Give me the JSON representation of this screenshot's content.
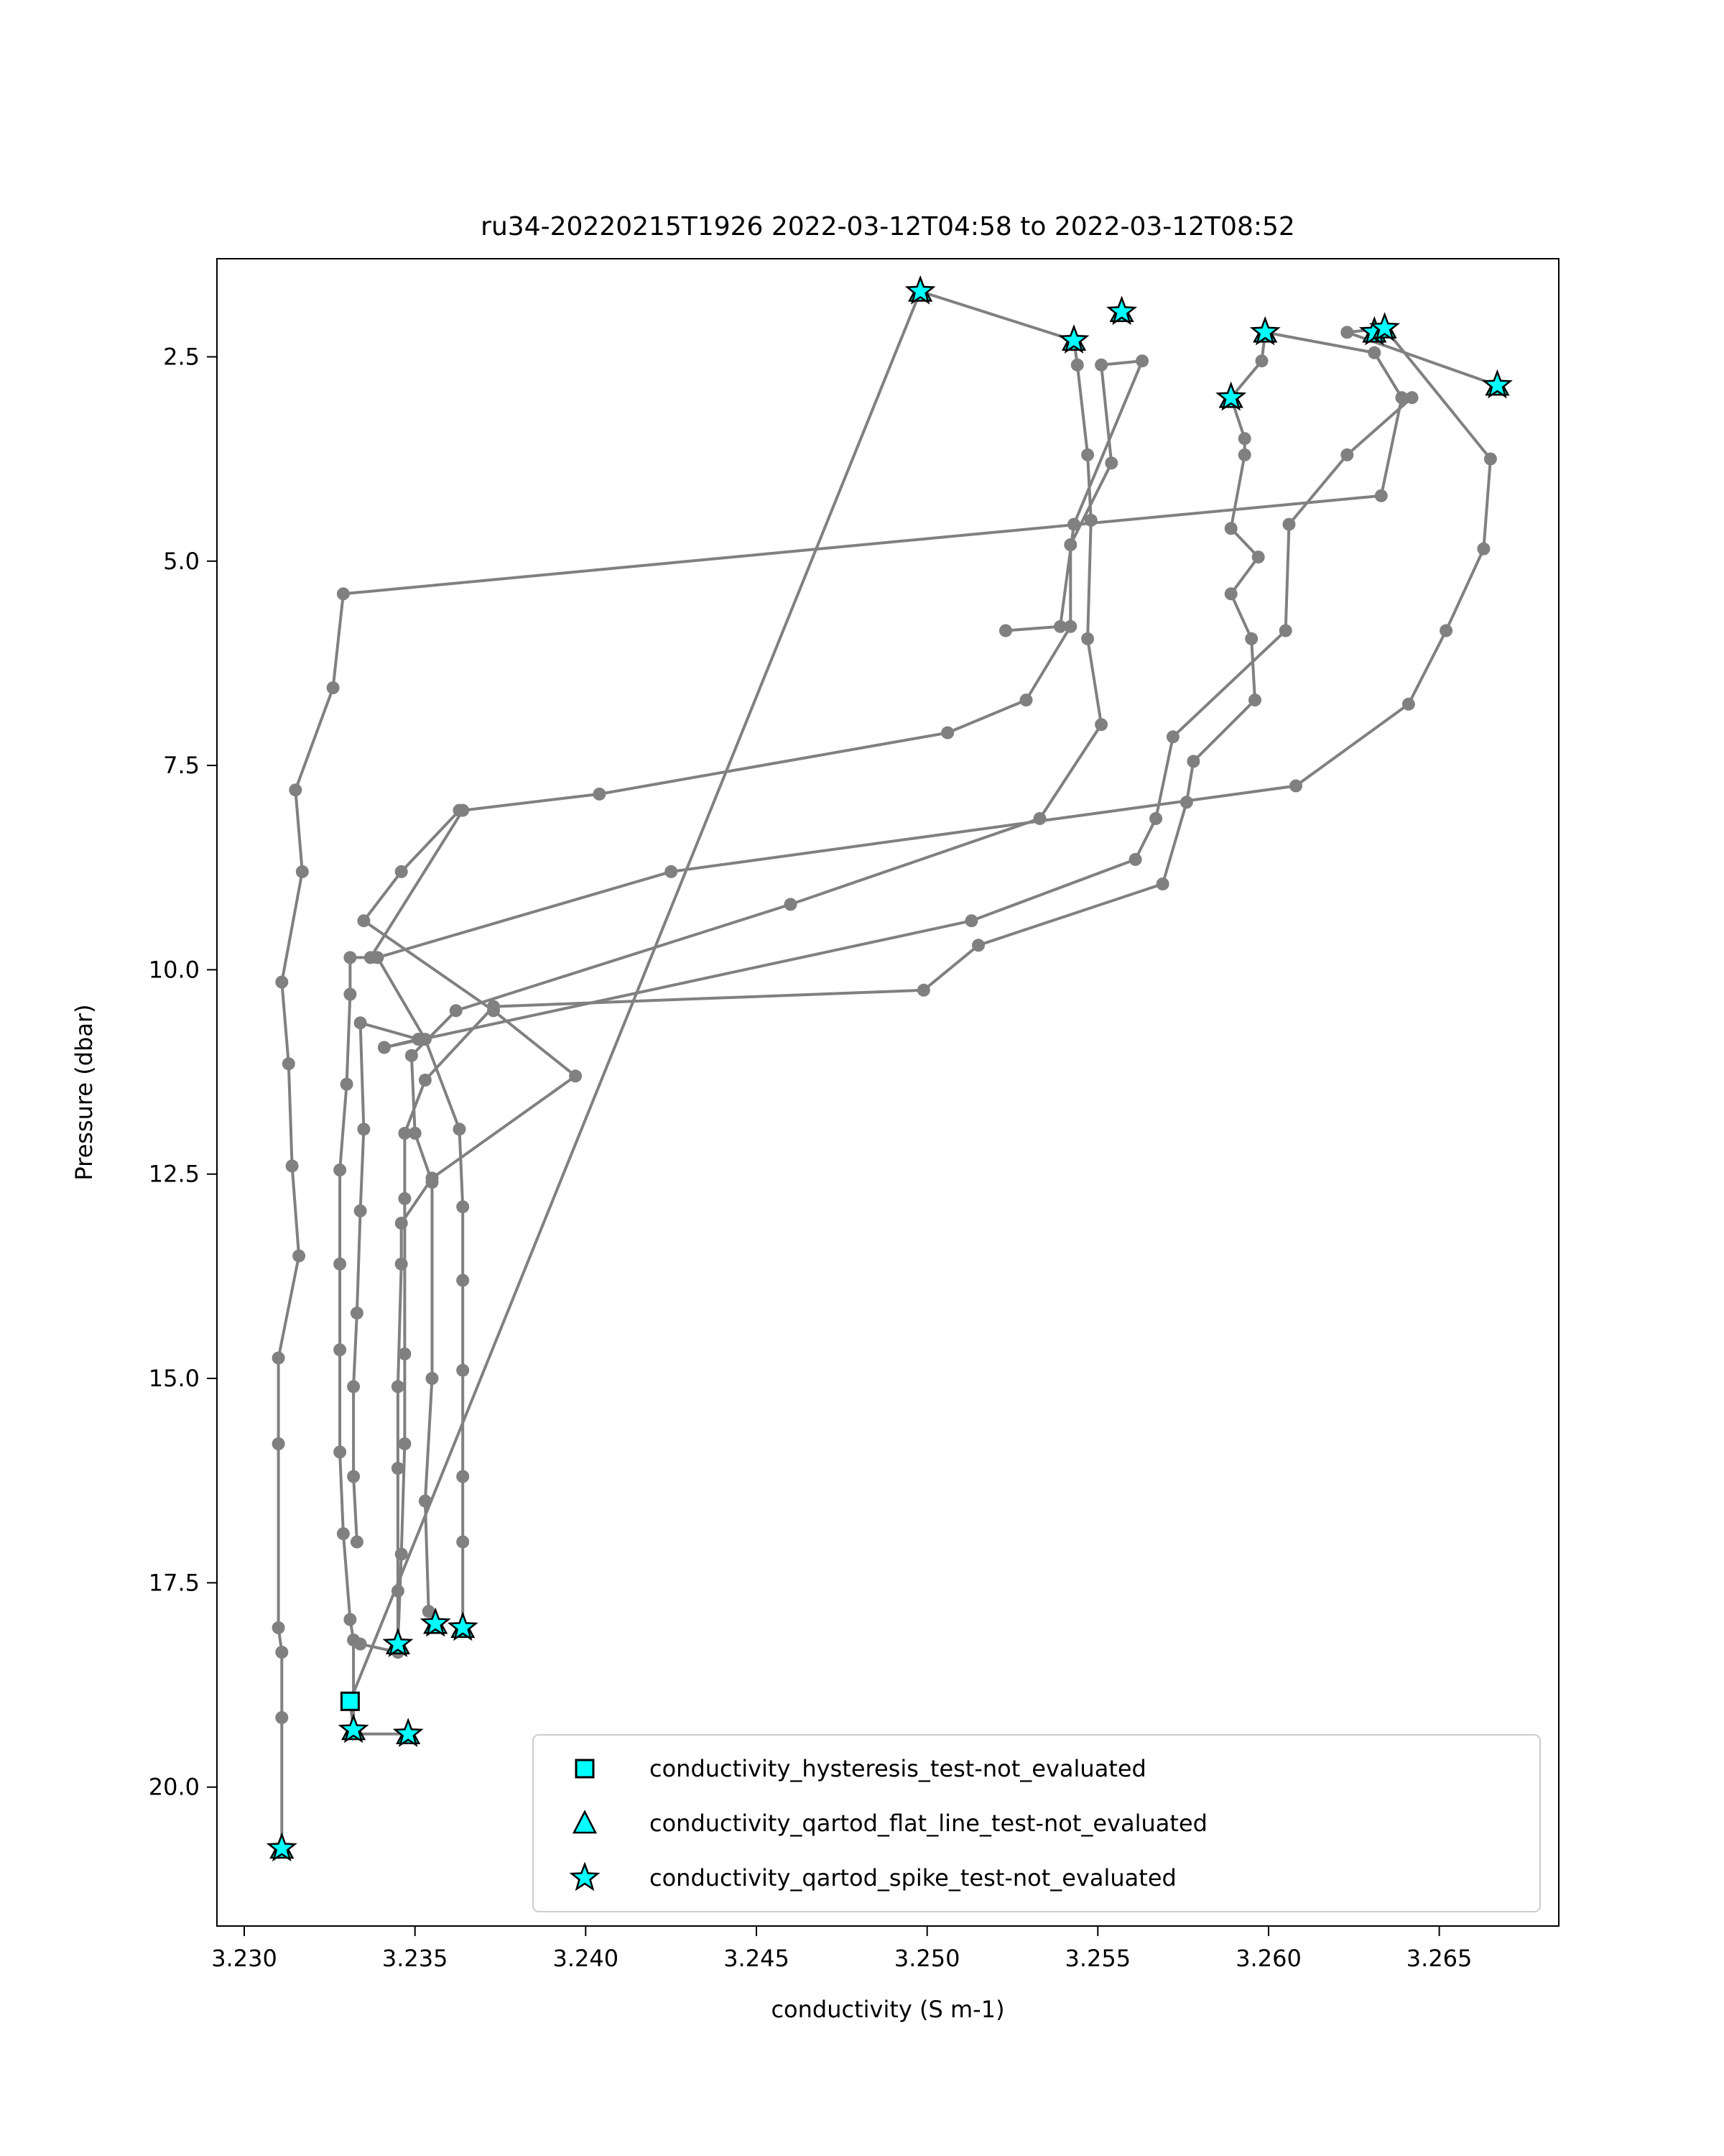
{
  "chart_data": {
    "type": "line",
    "title": "ru34-20220215T1926 2022-03-12T04:58 to 2022-03-12T08:52",
    "xlabel": "conductivity (S m-1)",
    "ylabel": "Pressure (dbar)",
    "xlim": [
      3.2292,
      3.2685
    ],
    "ylim": [
      21.7,
      1.3
    ],
    "y_inverted": true,
    "grid": false,
    "x_ticks": [
      3.23,
      3.235,
      3.24,
      3.245,
      3.25,
      3.255,
      3.26,
      3.265
    ],
    "x_tick_labels": [
      "3.230",
      "3.235",
      "3.240",
      "3.245",
      "3.250",
      "3.255",
      "3.260",
      "3.265"
    ],
    "y_ticks": [
      2.5,
      5.0,
      7.5,
      10.0,
      12.5,
      15.0,
      17.5,
      20.0
    ],
    "y_tick_labels": [
      "2.5",
      "5.0",
      "7.5",
      "10.0",
      "12.5",
      "15.0",
      "17.5",
      "20.0"
    ],
    "line_color": "#808080",
    "marker_fill": "#00ffff",
    "legend_position": "lower right",
    "legend": [
      {
        "label": "conductivity_hysteresis_test-not_evaluated",
        "marker": "square"
      },
      {
        "label": "conductivity_qartod_flat_line_test-not_evaluated",
        "marker": "triangle"
      },
      {
        "label": "conductivity_qartod_spike_test-not_evaluated",
        "marker": "star"
      }
    ],
    "series": [
      {
        "points": [
          [
            3.2311,
            20.75
          ],
          [
            3.2311,
            19.15
          ],
          [
            3.2311,
            18.35
          ],
          [
            3.231,
            18.05
          ],
          [
            3.231,
            15.8
          ],
          [
            3.231,
            14.75
          ],
          [
            3.2316,
            13.5
          ],
          [
            3.2314,
            12.4
          ],
          [
            3.2313,
            11.15
          ],
          [
            3.2311,
            10.15
          ],
          [
            3.2317,
            8.8
          ],
          [
            3.2315,
            7.8
          ],
          [
            3.2326,
            6.55
          ],
          [
            3.2329,
            5.4
          ],
          [
            3.2633,
            4.2
          ],
          [
            3.2639,
            3.0
          ],
          [
            3.2631,
            2.45
          ],
          [
            3.2599,
            2.2
          ],
          [
            3.2598,
            2.55
          ],
          [
            3.2589,
            3.0
          ]
        ]
      },
      {
        "points": [
          [
            3.2589,
            3.0
          ],
          [
            3.2593,
            3.5
          ],
          [
            3.2593,
            3.7
          ],
          [
            3.2589,
            4.6
          ],
          [
            3.2597,
            4.95
          ],
          [
            3.2589,
            5.4
          ],
          [
            3.2595,
            5.95
          ],
          [
            3.2596,
            6.7
          ],
          [
            3.2578,
            7.45
          ],
          [
            3.2576,
            7.95
          ],
          [
            3.2569,
            8.95
          ],
          [
            3.2515,
            9.7
          ],
          [
            3.2499,
            10.25
          ],
          [
            3.2373,
            10.45
          ],
          [
            3.2353,
            11.35
          ],
          [
            3.2347,
            12.0
          ],
          [
            3.2347,
            12.8
          ],
          [
            3.2347,
            14.7
          ],
          [
            3.2347,
            15.8
          ],
          [
            3.2346,
            17.15
          ],
          [
            3.2345,
            18.25
          ]
        ]
      },
      {
        "points": [
          [
            3.2332,
            19.3
          ],
          [
            3.2331,
            18.95
          ],
          [
            3.2498,
            1.7
          ],
          [
            3.2543,
            2.3
          ],
          [
            3.2544,
            2.6
          ],
          [
            3.2547,
            3.7
          ],
          [
            3.2548,
            4.5
          ],
          [
            3.2547,
            5.95
          ],
          [
            3.2551,
            7.0
          ],
          [
            3.2533,
            8.15
          ],
          [
            3.246,
            9.2
          ],
          [
            3.2362,
            10.5
          ],
          [
            3.2349,
            11.05
          ],
          [
            3.235,
            12.0
          ],
          [
            3.2355,
            12.6
          ],
          [
            3.2355,
            15.0
          ],
          [
            3.2353,
            16.5
          ],
          [
            3.2354,
            17.85
          ],
          [
            3.2356,
            18.0
          ]
        ]
      },
      {
        "points": [
          [
            3.2348,
            19.35
          ],
          [
            3.2332,
            19.35
          ],
          [
            3.2332,
            18.2
          ],
          [
            3.2331,
            17.95
          ],
          [
            3.2329,
            16.9
          ],
          [
            3.2328,
            15.9
          ],
          [
            3.2328,
            14.65
          ],
          [
            3.2328,
            13.6
          ],
          [
            3.2328,
            12.45
          ],
          [
            3.233,
            11.4
          ],
          [
            3.2331,
            10.3
          ],
          [
            3.2331,
            9.85
          ],
          [
            3.2337,
            9.85
          ],
          [
            3.2364,
            8.05
          ],
          [
            3.2404,
            7.85
          ],
          [
            3.2506,
            7.1
          ],
          [
            3.2529,
            6.7
          ],
          [
            3.2542,
            5.8
          ],
          [
            3.2542,
            4.8
          ],
          [
            3.2554,
            3.8
          ],
          [
            3.2551,
            2.6
          ],
          [
            3.2563,
            2.55
          ],
          [
            3.2543,
            4.55
          ],
          [
            3.2539,
            5.8
          ],
          [
            3.2523,
            5.85
          ]
        ]
      },
      {
        "points": [
          [
            3.2642,
            3.0
          ],
          [
            3.2623,
            3.7
          ],
          [
            3.2606,
            4.55
          ],
          [
            3.2605,
            5.85
          ],
          [
            3.2572,
            7.15
          ],
          [
            3.2567,
            8.15
          ],
          [
            3.2561,
            8.65
          ],
          [
            3.2513,
            9.4
          ],
          [
            3.2341,
            10.95
          ],
          [
            3.2351,
            10.85
          ],
          [
            3.2334,
            10.65
          ],
          [
            3.2335,
            11.95
          ],
          [
            3.2334,
            12.95
          ],
          [
            3.2333,
            14.2
          ],
          [
            3.2332,
            15.1
          ],
          [
            3.2332,
            16.2
          ],
          [
            3.2333,
            17.0
          ]
        ]
      },
      {
        "points": [
          [
            3.2667,
            2.85
          ],
          [
            3.2623,
            2.2
          ],
          [
            3.2634,
            2.15
          ],
          [
            3.2665,
            3.75
          ],
          [
            3.2663,
            4.85
          ],
          [
            3.2652,
            5.85
          ],
          [
            3.2641,
            6.75
          ],
          [
            3.2608,
            7.75
          ],
          [
            3.2425,
            8.8
          ],
          [
            3.2339,
            9.85
          ],
          [
            3.2353,
            10.85
          ],
          [
            3.2363,
            11.95
          ],
          [
            3.2364,
            12.9
          ],
          [
            3.2364,
            13.8
          ],
          [
            3.2364,
            14.9
          ],
          [
            3.2364,
            16.2
          ],
          [
            3.2364,
            17.0
          ],
          [
            3.2364,
            18.05
          ]
        ]
      },
      {
        "points": [
          [
            3.2334,
            18.25
          ],
          [
            3.2345,
            18.35
          ],
          [
            3.2345,
            17.6
          ],
          [
            3.2345,
            16.1
          ],
          [
            3.2345,
            15.1
          ],
          [
            3.2346,
            13.6
          ],
          [
            3.2346,
            13.1
          ],
          [
            3.2355,
            12.55
          ],
          [
            3.2397,
            11.3
          ],
          [
            3.2373,
            10.5
          ],
          [
            3.2335,
            9.4
          ],
          [
            3.2346,
            8.8
          ],
          [
            3.2363,
            8.05
          ]
        ]
      }
    ],
    "flag_stars": [
      [
        3.2498,
        1.7
      ],
      [
        3.2543,
        2.3
      ],
      [
        3.2557,
        1.95
      ],
      [
        3.2599,
        2.2
      ],
      [
        3.2631,
        2.2
      ],
      [
        3.2634,
        2.15
      ],
      [
        3.2667,
        2.85
      ],
      [
        3.2589,
        3.0
      ],
      [
        3.2345,
        18.25
      ],
      [
        3.2356,
        18.0
      ],
      [
        3.2364,
        18.05
      ],
      [
        3.2332,
        19.3
      ],
      [
        3.2348,
        19.35
      ],
      [
        3.2311,
        20.75
      ]
    ],
    "flag_squares": [
      [
        3.2331,
        18.95
      ]
    ]
  }
}
